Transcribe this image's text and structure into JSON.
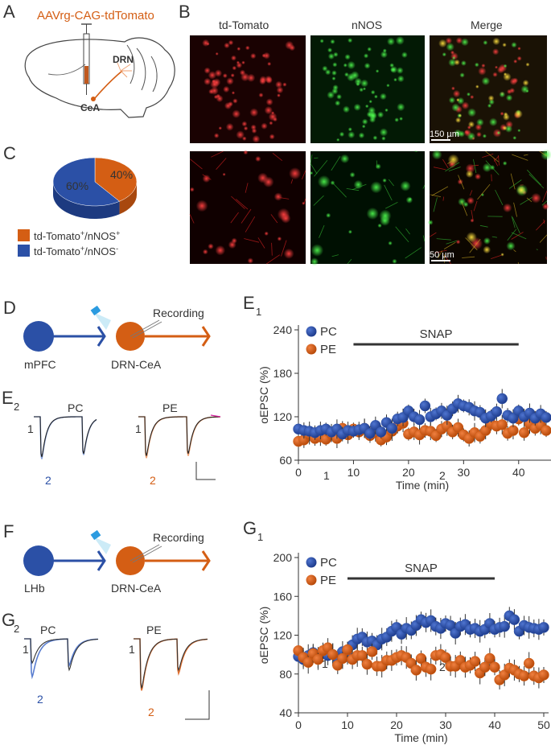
{
  "panels": {
    "a": "A",
    "b": "B",
    "c": "C",
    "d": "D",
    "e1": "E",
    "e1_sub": "1",
    "e2": "E",
    "e2_sub": "2",
    "f": "F",
    "g1": "G",
    "g1_sub": "1",
    "g2": "G",
    "g2_sub": "2"
  },
  "colors": {
    "pc": "#2b50a6",
    "pe": "#d45e14",
    "red": "#e02020",
    "green": "#20c020",
    "dark": "#333333"
  },
  "panel_a": {
    "virus": "AAVrg-CAG-tdTomato",
    "drn": "DRN",
    "cea": "CeA"
  },
  "panel_b": {
    "col1": "td-Tomato",
    "col2": "nNOS",
    "col3": "Merge",
    "scale_top": "150 µm",
    "scale_bottom": "50 µm"
  },
  "panel_c": {
    "pie_pe_label": "40%",
    "pie_pc_label": "60%",
    "legend1_main": "td-Tomato",
    "legend1_sup1": "+",
    "legend1_mid": "/nNOS",
    "legend1_sup2": "+",
    "legend2_main": "td-Tomato",
    "legend2_sup1": "+",
    "legend2_mid": "/nNOS",
    "legend2_sup2": "-"
  },
  "panel_d": {
    "source": "mPFC",
    "target": "DRN-CeA",
    "recording": "Recording"
  },
  "panel_f": {
    "source": "LHb",
    "target": "DRN-CeA",
    "recording": "Recording"
  },
  "traces_e2": {
    "pc": "PC",
    "pe": "PE",
    "n1": "1",
    "n2": "2",
    "n1b": "1",
    "n2b": "2"
  },
  "traces_g2": {
    "pc": "PC",
    "pe": "PE",
    "n1": "1",
    "n2": "2",
    "n1b": "1",
    "n2b": "2"
  },
  "chart_data": [
    {
      "type": "pie",
      "categories": [
        "td-Tomato+/nNOS+",
        "td-Tomato+/nNOS-"
      ],
      "values": [
        40,
        60
      ]
    },
    {
      "type": "scatter",
      "xlabel": "Time (min)",
      "ylabel": "oEPSC (%)",
      "xlim": [
        0,
        45
      ],
      "ylim": [
        60,
        240
      ],
      "xticks": [
        0,
        10,
        20,
        30,
        40
      ],
      "yticks": [
        60,
        120,
        180,
        240
      ],
      "annotation": "SNAP",
      "bar_range": [
        10,
        40
      ],
      "marker_1": "1",
      "marker_2": "2",
      "x": [
        0,
        1,
        2,
        3,
        4,
        5,
        6,
        7,
        8,
        9,
        10,
        11,
        12,
        13,
        14,
        15,
        16,
        17,
        18,
        19,
        20,
        21,
        22,
        23,
        24,
        25,
        26,
        27,
        28,
        29,
        30,
        31,
        32,
        33,
        34,
        35,
        36,
        37,
        38,
        39,
        40,
        41,
        42,
        43,
        44,
        45
      ],
      "series": [
        {
          "name": "PC",
          "values": [
            103,
            101,
            100,
            98,
            101,
            103,
            99,
            103,
            96,
            101,
            100,
            102,
            104,
            97,
            108,
            99,
            112,
            104,
            117,
            119,
            128,
            120,
            116,
            135,
            120,
            124,
            128,
            122,
            131,
            138,
            135,
            133,
            128,
            126,
            118,
            121,
            127,
            145,
            122,
            118,
            128,
            120,
            125,
            118,
            124,
            119
          ]
        },
        {
          "name": "PE",
          "values": [
            86,
            88,
            95,
            90,
            92,
            89,
            96,
            90,
            104,
            95,
            103,
            99,
            104,
            94,
            98,
            88,
            92,
            100,
            107,
            111,
            96,
            99,
            95,
            101,
            100,
            94,
            103,
            107,
            99,
            105,
            95,
            90,
            98,
            93,
            101,
            110,
            107,
            109,
            97,
            101,
            117,
            98,
            110,
            104,
            108,
            101
          ]
        }
      ]
    },
    {
      "type": "scatter",
      "xlabel": "Time (min)",
      "ylabel": "oEPSC (%)",
      "xlim": [
        0,
        50
      ],
      "ylim": [
        40,
        200
      ],
      "xticks": [
        0,
        10,
        20,
        30,
        40,
        50
      ],
      "yticks": [
        40,
        80,
        120,
        160,
        200
      ],
      "annotation": "SNAP",
      "bar_range": [
        10,
        40
      ],
      "marker_1": "1",
      "marker_2": "2",
      "x": [
        0,
        1,
        2,
        3,
        4,
        5,
        6,
        7,
        8,
        9,
        10,
        11,
        12,
        13,
        14,
        15,
        16,
        17,
        18,
        19,
        20,
        21,
        22,
        23,
        24,
        25,
        26,
        27,
        28,
        29,
        30,
        31,
        32,
        33,
        34,
        35,
        36,
        37,
        38,
        39,
        40,
        41,
        42,
        43,
        44,
        45,
        46,
        47,
        48,
        49,
        50
      ],
      "series": [
        {
          "name": "PC",
          "values": [
            98,
            95,
            99,
            102,
            97,
            101,
            99,
            100,
            96,
            103,
            98,
            110,
            116,
            118,
            113,
            114,
            110,
            116,
            118,
            124,
            128,
            121,
            127,
            125,
            130,
            136,
            133,
            135,
            129,
            127,
            132,
            130,
            122,
            129,
            131,
            126,
            127,
            124,
            126,
            132,
            126,
            128,
            129,
            140,
            136,
            124,
            130,
            128,
            127,
            126,
            128
          ]
        },
        {
          "name": "PE",
          "values": [
            104,
            97,
            92,
            101,
            95,
            104,
            107,
            100,
            89,
            96,
            105,
            95,
            99,
            99,
            90,
            103,
            88,
            88,
            94,
            94,
            97,
            99,
            97,
            91,
            84,
            96,
            87,
            85,
            99,
            100,
            97,
            88,
            88,
            94,
            87,
            89,
            93,
            81,
            87,
            96,
            87,
            74,
            79,
            86,
            84,
            80,
            78,
            91,
            78,
            76,
            79
          ]
        }
      ]
    }
  ]
}
